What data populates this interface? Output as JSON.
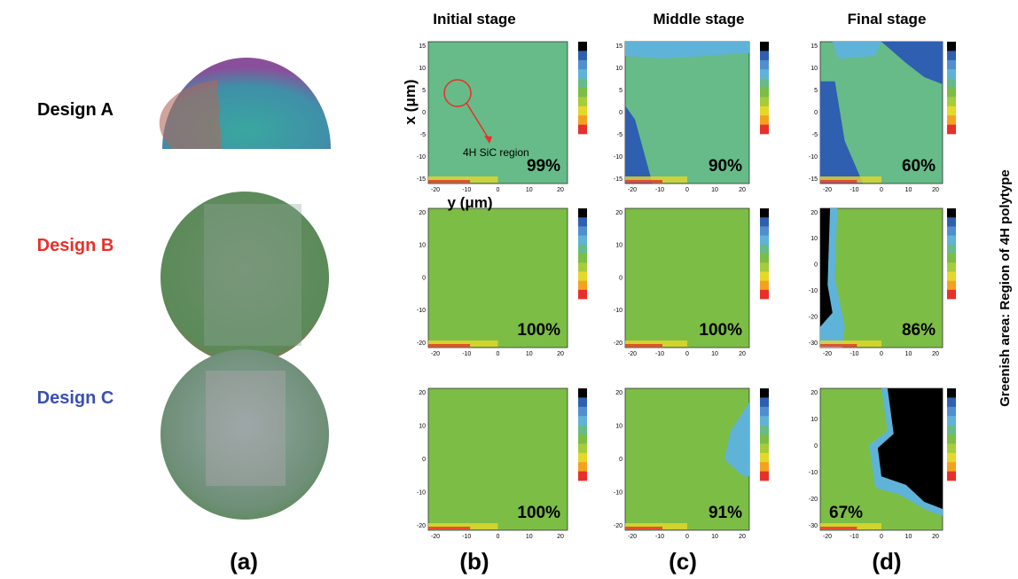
{
  "column_headers": [
    "Initial stage",
    "Middle stage",
    "Final stage"
  ],
  "rows": [
    {
      "label": "Design A",
      "maps": [
        {
          "percentage": "99%",
          "vertical_ticks": [
            "15",
            "10",
            "5",
            "0",
            "-5",
            "-10",
            "-15"
          ],
          "horizontal_ticks": [
            "-20",
            "-10",
            "0",
            "10",
            "20"
          ]
        },
        {
          "percentage": "90%",
          "vertical_ticks": [
            "15",
            "10",
            "5",
            "0",
            "-5",
            "-10",
            "-15"
          ],
          "horizontal_ticks": [
            "-20",
            "-10",
            "0",
            "10",
            "20"
          ]
        },
        {
          "percentage": "60%",
          "vertical_ticks": [
            "15",
            "10",
            "5",
            "0",
            "-5",
            "-10",
            "-15"
          ],
          "horizontal_ticks": [
            "-20",
            "-10",
            "0",
            "10",
            "20"
          ]
        }
      ]
    },
    {
      "label": "Design B",
      "maps": [
        {
          "percentage": "100%",
          "vertical_ticks": [
            "20",
            "10",
            "0",
            "-10",
            "-20"
          ],
          "horizontal_ticks": [
            "-20",
            "-10",
            "0",
            "10",
            "20"
          ]
        },
        {
          "percentage": "100%",
          "vertical_ticks": [
            "20",
            "10",
            "0",
            "-10",
            "-20"
          ],
          "horizontal_ticks": [
            "-20",
            "-10",
            "0",
            "10",
            "20"
          ]
        },
        {
          "percentage": "86%",
          "vertical_ticks": [
            "20",
            "10",
            "0",
            "-10",
            "-20",
            "-30"
          ],
          "horizontal_ticks": [
            "-20",
            "-10",
            "0",
            "10",
            "20"
          ]
        }
      ]
    },
    {
      "label": "Design C",
      "maps": [
        {
          "percentage": "100%",
          "vertical_ticks": [
            "20",
            "10",
            "0",
            "-10",
            "-20"
          ],
          "horizontal_ticks": [
            "-20",
            "-10",
            "0",
            "10",
            "20"
          ]
        },
        {
          "percentage": "91%",
          "vertical_ticks": [
            "20",
            "10",
            "0",
            "-10",
            "-20"
          ],
          "horizontal_ticks": [
            "-20",
            "-10",
            "0",
            "10",
            "20"
          ]
        },
        {
          "percentage": "67%",
          "vertical_ticks": [
            "20",
            "10",
            "0",
            "-10",
            "-20",
            "-30"
          ],
          "horizontal_ticks": [
            "-20",
            "-10",
            "0",
            "10",
            "20"
          ]
        }
      ]
    }
  ],
  "map_axes": {
    "vertical_label": "x (μm)",
    "horizontal_label": "y (μm)"
  },
  "annotation": "4H SiC region",
  "panel_labels": [
    "(a)",
    "(b)",
    "(c)",
    "(d)"
  ],
  "side_label": "Greenish area: Region of 4H polytype"
}
